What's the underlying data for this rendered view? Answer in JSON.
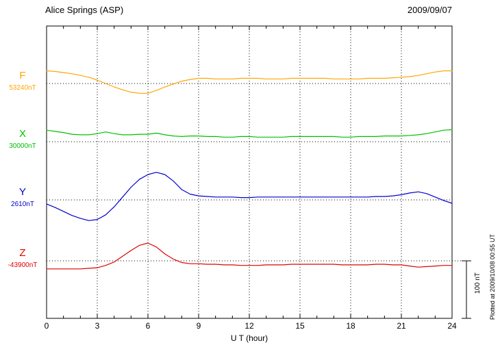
{
  "header": {
    "station": "Alice Springs (ASP)",
    "date": "2009/09/07"
  },
  "axis": {
    "xlabel": "U T (hour)",
    "ticks": [
      0,
      3,
      6,
      9,
      12,
      15,
      18,
      21,
      24
    ],
    "xlim": [
      0,
      24
    ]
  },
  "plotted_at": "Plotted at 2009/10/08 00:55 UT",
  "chart_data": {
    "type": "line",
    "title": "Alice Springs (ASP)",
    "subtitle": "2009/09/07",
    "xlabel": "U T (hour)",
    "xlim": [
      0,
      24
    ],
    "ticks": [
      0,
      3,
      6,
      9,
      12,
      15,
      18,
      21,
      24
    ],
    "grid": "dotted vertical at 3-hour ticks, dotted horizontal baselines per trace",
    "legend_position": "left of each baseline",
    "scale_bar": {
      "label": "100 nT",
      "nT": 100
    },
    "x_hours": [
      0,
      0.5,
      1,
      1.5,
      2,
      2.5,
      3,
      3.5,
      4,
      4.5,
      5,
      5.5,
      6,
      6.5,
      7,
      7.5,
      8,
      8.5,
      9,
      9.5,
      10,
      10.5,
      11,
      11.5,
      12,
      12.5,
      13,
      13.5,
      14,
      14.5,
      15,
      15.5,
      16,
      16.5,
      17,
      17.5,
      18,
      18.5,
      19,
      19.5,
      20,
      20.5,
      21,
      21.5,
      22,
      22.5,
      23,
      23.5,
      24
    ],
    "series": [
      {
        "name": "F",
        "baseline_label": "53240nT",
        "baseline_nT": 53240,
        "color": "#FFA500",
        "offsets_nT": [
          22,
          21,
          19,
          17,
          14,
          11,
          6,
          0,
          -6,
          -11,
          -15,
          -17,
          -17,
          -12,
          -6,
          -1,
          4,
          7,
          9,
          9,
          8,
          8,
          8,
          9,
          9,
          9,
          8,
          8,
          8,
          9,
          9,
          9,
          9,
          9,
          8,
          8,
          8,
          8,
          9,
          9,
          9,
          10,
          11,
          12,
          14,
          17,
          20,
          22,
          22
        ]
      },
      {
        "name": "X",
        "baseline_label": "30000nT",
        "baseline_nT": 30000,
        "color": "#00C000",
        "offsets_nT": [
          20,
          18,
          16,
          13,
          12,
          12,
          14,
          17,
          14,
          12,
          12,
          13,
          13,
          15,
          12,
          10,
          9,
          10,
          10,
          9,
          9,
          8,
          8,
          9,
          9,
          8,
          8,
          8,
          8,
          9,
          9,
          9,
          9,
          9,
          9,
          8,
          8,
          9,
          9,
          9,
          10,
          10,
          10,
          11,
          12,
          14,
          17,
          20,
          21
        ]
      },
      {
        "name": "Y",
        "baseline_label": "2610nT",
        "baseline_nT": 2610,
        "color": "#0000CD",
        "offsets_nT": [
          -7,
          -13,
          -20,
          -27,
          -32,
          -36,
          -34,
          -26,
          -12,
          5,
          22,
          36,
          44,
          48,
          44,
          33,
          18,
          10,
          7,
          6,
          5,
          5,
          5,
          4,
          4,
          5,
          5,
          5,
          5,
          5,
          5,
          5,
          5,
          5,
          5,
          5,
          5,
          5,
          5,
          6,
          6,
          7,
          9,
          12,
          14,
          11,
          5,
          -1,
          -6
        ]
      },
      {
        "name": "Z",
        "baseline_label": "-43900nT",
        "baseline_nT": -43900,
        "color": "#E00000",
        "offsets_nT": [
          -14,
          -14,
          -14,
          -14,
          -14,
          -13,
          -12,
          -8,
          -2,
          8,
          18,
          27,
          31,
          24,
          12,
          3,
          -3,
          -5,
          -5,
          -6,
          -6,
          -7,
          -7,
          -8,
          -8,
          -8,
          -7,
          -7,
          -7,
          -6,
          -6,
          -6,
          -6,
          -6,
          -6,
          -7,
          -7,
          -7,
          -7,
          -6,
          -6,
          -7,
          -7,
          -9,
          -11,
          -10,
          -9,
          -8,
          -8
        ]
      }
    ]
  }
}
